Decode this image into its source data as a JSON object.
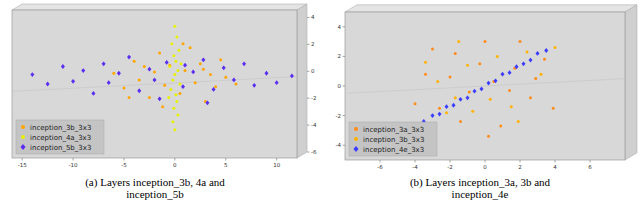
{
  "chart_data": [
    {
      "type": "scatter",
      "title": "(a) Layers inception_3b, 4a and inception_5b",
      "xlim": [
        -16,
        12
      ],
      "ylim": [
        -6,
        5
      ],
      "xticks": [
        -15,
        -10,
        -5,
        0,
        5,
        10
      ],
      "yticks": [
        -6,
        -4,
        -2,
        0,
        2,
        4
      ],
      "legend": "lower left",
      "series": [
        {
          "name": "inception_3b_3x3",
          "color": "#ffa500",
          "marker": "circle",
          "x": [
            -6,
            -5,
            -4,
            -3.5,
            -3,
            -2.5,
            -2,
            -1.5,
            -1,
            -0.5,
            0.5,
            1,
            1.5,
            2,
            2.5,
            3,
            3.5,
            4,
            4.5,
            5,
            6,
            -1.2,
            0.8,
            2.8,
            -4.5
          ],
          "values": [
            0.3,
            -0.8,
            1.2,
            -0.2,
            0.8,
            -1.5,
            0.4,
            1.8,
            -0.6,
            0.9,
            -1.2,
            0.5,
            2.2,
            -0.4,
            1,
            -1.8,
            0.2,
            -0.7,
            1.3,
            0,
            -0.5,
            -2.2,
            2.5,
            0.6,
            -1.5
          ]
        },
        {
          "name": "inception_4a_3x3",
          "color": "#e6f000",
          "marker": "circle",
          "x": [
            0,
            0.2,
            -0.3,
            0.4,
            -0.1,
            0.1,
            -0.5,
            0.3,
            0,
            -0.2,
            0.5,
            -0.4,
            0.1,
            0.2,
            -0.1,
            0.3,
            -0.2,
            0,
            0.6,
            -0.6
          ],
          "values": [
            3.8,
            3,
            2.5,
            2,
            1.6,
            1.2,
            0.8,
            0.5,
            0.2,
            -0.2,
            -0.5,
            -0.9,
            -1.3,
            -1.8,
            -2.3,
            -2.8,
            -3.3,
            -3.9,
            1,
            -1.5
          ]
        },
        {
          "name": "inception_5b_3x3",
          "color": "#5a2df0",
          "marker": "diamond",
          "x": [
            -14,
            -12.5,
            -11,
            -10,
            -9,
            -8,
            -7,
            -6.5,
            -5.5,
            -4.5,
            -3.5,
            -2.5,
            -1.5,
            -0.8,
            0.8,
            1.8,
            2.8,
            3.8,
            4.8,
            5.8,
            6.8,
            7.8,
            9,
            10,
            11.5,
            -2,
            1,
            3.2
          ],
          "values": [
            0.2,
            -0.5,
            0.8,
            -0.3,
            0.5,
            -1.2,
            1,
            -0.4,
            0.3,
            1.5,
            -1,
            0.6,
            -1.6,
            1.1,
            -0.7,
            0.4,
            1.3,
            -0.9,
            0.7,
            -0.2,
            1,
            -0.6,
            0.3,
            -0.4,
            0.1,
            -0.2,
            0.9,
            -1.9
          ]
        }
      ]
    },
    {
      "type": "scatter",
      "title": "(b) Layers inception_3a, 3b and inception_4e",
      "xlim": [
        -8,
        8
      ],
      "ylim": [
        -5,
        5
      ],
      "xticks": [
        -6,
        -4,
        -2,
        0,
        2,
        4,
        6
      ],
      "yticks": [
        -4,
        -2,
        0,
        2,
        4
      ],
      "legend": "lower left",
      "series": [
        {
          "name": "inception_3a_3x3",
          "color": "#ff8c1a",
          "marker": "circle",
          "x": [
            -3.4,
            -2.6,
            -1.7,
            -0.9,
            0,
            0.9,
            1.7,
            2.6,
            3.4,
            -3,
            0.5,
            -1.4,
            2,
            3.9,
            -4,
            1.4,
            -0.3,
            2.9,
            -2,
            0.2
          ],
          "values": [
            0.8,
            -1.5,
            2.2,
            -0.4,
            3,
            -2.7,
            1.2,
            -0.8,
            1.8,
            2.5,
            0.3,
            -2.4,
            3,
            -1.5,
            -1.2,
            -0.3,
            1.5,
            0.5,
            0.6,
            -3.4
          ]
        },
        {
          "name": "inception_3b_3x3",
          "color": "#ffb300",
          "marker": "circle",
          "x": [
            -2.7,
            -1.7,
            -1,
            0.7,
            1.5,
            2.4,
            -2.2,
            0.3,
            3.2,
            -0.7,
            1,
            -3.4,
            4,
            -1.5,
            1.9
          ],
          "values": [
            0.3,
            -0.8,
            1.4,
            2,
            -1.4,
            2.3,
            -1.8,
            -0.9,
            0.8,
            -1.7,
            0.8,
            1.6,
            2.6,
            3,
            -2.4
          ]
        },
        {
          "name": "inception_4e_3x3",
          "color": "#3c3cff",
          "marker": "diamond",
          "x": [
            -3.5,
            -3,
            -2.6,
            -2.2,
            -1.8,
            -1.4,
            -1,
            -0.6,
            -0.2,
            0.2,
            0.6,
            1,
            1.4,
            1.8,
            2.2,
            2.6,
            3,
            3.5
          ],
          "values": [
            -2.4,
            -2,
            -1.9,
            -1.4,
            -1.3,
            -0.9,
            -0.8,
            -0.35,
            -0.2,
            0.2,
            0.35,
            0.8,
            0.9,
            1.3,
            1.5,
            1.75,
            2.2,
            2.4
          ]
        }
      ]
    }
  ]
}
